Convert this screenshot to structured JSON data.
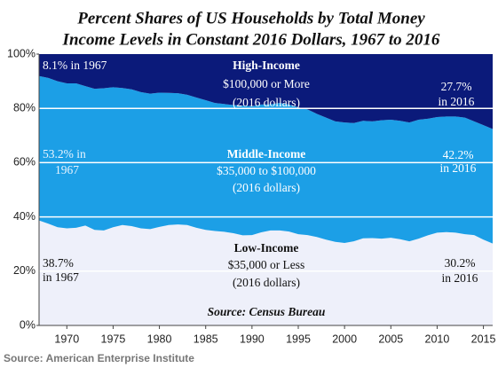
{
  "chart_data": {
    "type": "stacked-area",
    "title": [
      "Percent Shares of US Households by Total Money",
      "Income Levels in Constant 2016 Dollars, 1967 to 2016"
    ],
    "source": "Source: American Enterprise Institute",
    "x": [
      1967,
      1968,
      1969,
      1970,
      1971,
      1972,
      1973,
      1974,
      1975,
      1976,
      1977,
      1978,
      1979,
      1980,
      1981,
      1982,
      1983,
      1984,
      1985,
      1986,
      1987,
      1988,
      1989,
      1990,
      1991,
      1992,
      1993,
      1994,
      1995,
      1996,
      1997,
      1998,
      1999,
      2000,
      2001,
      2002,
      2003,
      2004,
      2005,
      2006,
      2007,
      2008,
      2009,
      2010,
      2011,
      2012,
      2013,
      2014,
      2015,
      2016
    ],
    "xlim": [
      1967,
      2016
    ],
    "xticks": [
      1970,
      1975,
      1980,
      1985,
      1990,
      1995,
      2000,
      2005,
      2010,
      2015
    ],
    "ylim": [
      0,
      100
    ],
    "yticks": [
      {
        "value": 0,
        "label": "0%"
      },
      {
        "value": 20,
        "label": "20%"
      },
      {
        "value": 40,
        "label": "40%"
      },
      {
        "value": 60,
        "label": "60%"
      },
      {
        "value": 80,
        "label": "80%"
      },
      {
        "value": 100,
        "label": "100%"
      }
    ],
    "grid": true,
    "series": [
      {
        "name": "Low-Income",
        "color": "#eef0fa",
        "values": [
          38.7,
          37.5,
          36.2,
          35.8,
          36.0,
          36.8,
          35.2,
          35.0,
          36.2,
          37.0,
          36.6,
          35.8,
          35.5,
          36.3,
          37.0,
          37.2,
          37.0,
          36.0,
          35.2,
          34.8,
          34.5,
          34.0,
          33.2,
          33.3,
          34.3,
          35.0,
          35.0,
          34.6,
          33.6,
          33.3,
          32.6,
          31.6,
          30.8,
          30.4,
          31.0,
          32.1,
          32.2,
          32.0,
          32.3,
          31.8,
          31.0,
          32.0,
          33.2,
          34.2,
          34.4,
          34.2,
          33.6,
          33.3,
          31.6,
          30.2
        ]
      },
      {
        "name": "Middle-Income",
        "color": "#1c9fe6",
        "values": [
          53.2,
          53.7,
          53.8,
          53.4,
          53.2,
          51.4,
          52.0,
          52.4,
          51.6,
          50.5,
          50.4,
          50.2,
          49.9,
          49.5,
          48.7,
          48.4,
          48.0,
          48.0,
          47.8,
          47.2,
          47.1,
          47.2,
          47.8,
          47.5,
          47.1,
          46.5,
          47.0,
          46.8,
          46.8,
          46.3,
          45.4,
          45.0,
          44.4,
          44.4,
          43.6,
          43.3,
          43.0,
          43.6,
          43.5,
          43.6,
          43.8,
          43.8,
          43.0,
          42.6,
          42.6,
          42.8,
          43.0,
          41.9,
          42.2,
          42.2
        ]
      },
      {
        "name": "High-Income",
        "color": "#0b1a7a",
        "values": [
          8.1,
          8.8,
          10.0,
          10.8,
          10.8,
          11.8,
          12.8,
          12.6,
          12.2,
          12.5,
          13.0,
          14.0,
          14.6,
          14.2,
          14.3,
          14.4,
          15.0,
          16.0,
          17.0,
          18.0,
          18.4,
          18.8,
          19.0,
          19.2,
          18.6,
          18.5,
          18.0,
          18.6,
          19.6,
          20.4,
          22.0,
          23.4,
          24.8,
          25.2,
          25.4,
          24.6,
          24.8,
          24.4,
          24.2,
          24.6,
          25.2,
          24.2,
          23.8,
          23.2,
          23.0,
          23.0,
          23.4,
          24.8,
          26.2,
          27.7
        ]
      }
    ],
    "annotations": [
      "8.1% in 1967",
      "High-Income",
      "$100,000 or More",
      "(2016 dollars)",
      "27.7%",
      "in 2016",
      "53.2% in",
      "1967",
      "Middle-Income",
      "$35,000 to $100,000",
      "(2016 dollars)",
      "42.2%",
      "in 2016",
      "Low-Income",
      "$35,000 or Less",
      "(2016 dollars)",
      "38.7%",
      "in 1967",
      "30.2%",
      "in 2016",
      "Source: Census Bureau"
    ]
  }
}
